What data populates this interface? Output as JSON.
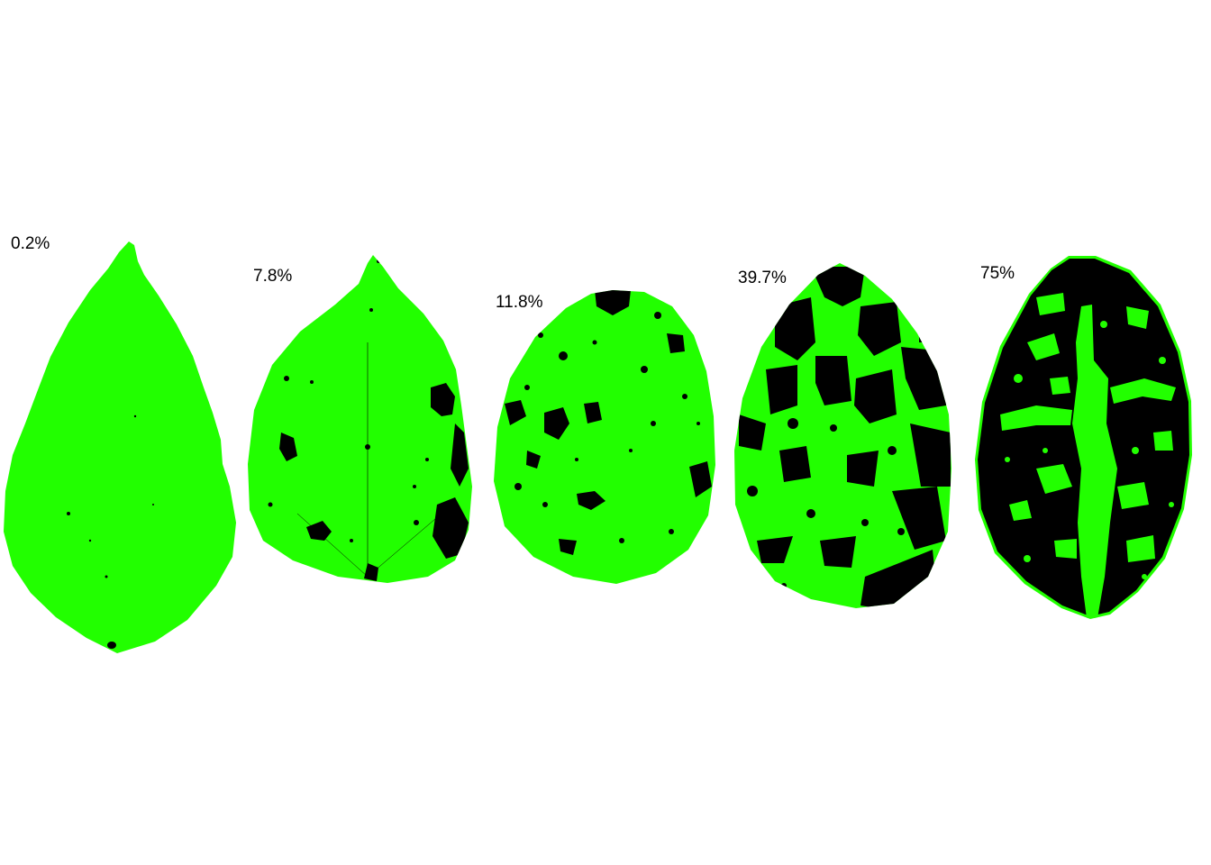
{
  "colors": {
    "healthy": "#22ff00",
    "diseased": "#000000",
    "background": "#ffffff"
  },
  "leaves": [
    {
      "label": "0.2%",
      "severity_percent": 0.2
    },
    {
      "label": "7.8%",
      "severity_percent": 7.8
    },
    {
      "label": "11.8%",
      "severity_percent": 11.8
    },
    {
      "label": "39.7%",
      "severity_percent": 39.7
    },
    {
      "label": "75%",
      "severity_percent": 75
    }
  ]
}
